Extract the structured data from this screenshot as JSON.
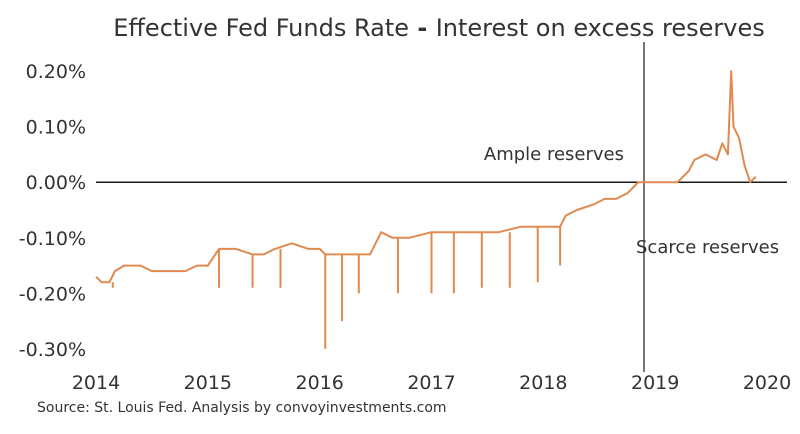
{
  "chart_data": {
    "type": "line",
    "title_part1": "Effective Fed Funds Rate",
    "title_sep": " - ",
    "title_part2": "Interest on excess reserves",
    "source": "Source: St. Louis Fed. Analysis by convoyinvestments.com",
    "xlabel": "",
    "ylabel": "",
    "x_ticks": [
      "2014",
      "2015",
      "2016",
      "2017",
      "2018",
      "2019",
      "2020"
    ],
    "y_ticks": [
      "0.20%",
      "0.10%",
      "0.00%",
      "-0.10%",
      "-0.20%",
      "-0.30%"
    ],
    "y_tick_values": [
      0.2,
      0.1,
      0.0,
      -0.1,
      -0.2,
      -0.3
    ],
    "xlim": [
      2014.0,
      2020.0
    ],
    "ylim": [
      -0.32,
      0.22
    ],
    "grid": false,
    "legend": "none",
    "line_color": "#e08a50",
    "zero_line_color": "#1a1a1a",
    "vline_x": 2018.9,
    "annotations": {
      "ample": "Ample reserves",
      "scarce": "Scarce reserves"
    },
    "series": [
      {
        "values": [
          [
            2014.0,
            -0.17
          ],
          [
            2014.05,
            -0.18
          ],
          [
            2014.12,
            -0.18
          ],
          [
            2014.17,
            -0.16
          ],
          [
            2014.25,
            -0.15
          ],
          [
            2014.4,
            -0.15
          ],
          [
            2014.5,
            -0.16
          ],
          [
            2014.55,
            -0.16
          ],
          [
            2014.7,
            -0.16
          ],
          [
            2014.8,
            -0.16
          ],
          [
            2014.9,
            -0.15
          ],
          [
            2015.0,
            -0.15
          ],
          [
            2015.1,
            -0.12
          ],
          [
            2015.25,
            -0.12
          ],
          [
            2015.4,
            -0.13
          ],
          [
            2015.5,
            -0.13
          ],
          [
            2015.6,
            -0.12
          ],
          [
            2015.75,
            -0.11
          ],
          [
            2015.9,
            -0.12
          ],
          [
            2016.0,
            -0.12
          ],
          [
            2016.05,
            -0.13
          ],
          [
            2016.2,
            -0.13
          ],
          [
            2016.35,
            -0.13
          ],
          [
            2016.45,
            -0.13
          ],
          [
            2016.55,
            -0.09
          ],
          [
            2016.65,
            -0.1
          ],
          [
            2016.8,
            -0.1
          ],
          [
            2017.0,
            -0.09
          ],
          [
            2017.2,
            -0.09
          ],
          [
            2017.4,
            -0.09
          ],
          [
            2017.6,
            -0.09
          ],
          [
            2017.8,
            -0.08
          ],
          [
            2018.0,
            -0.08
          ],
          [
            2018.15,
            -0.08
          ],
          [
            2018.2,
            -0.06
          ],
          [
            2018.3,
            -0.05
          ],
          [
            2018.45,
            -0.04
          ],
          [
            2018.55,
            -0.03
          ],
          [
            2018.65,
            -0.03
          ],
          [
            2018.75,
            -0.02
          ],
          [
            2018.85,
            0.0
          ],
          [
            2018.95,
            0.0
          ],
          [
            2019.1,
            0.0
          ],
          [
            2019.2,
            0.0
          ],
          [
            2019.3,
            0.02
          ],
          [
            2019.35,
            0.04
          ],
          [
            2019.45,
            0.05
          ],
          [
            2019.55,
            0.04
          ],
          [
            2019.6,
            0.07
          ],
          [
            2019.65,
            0.05
          ],
          [
            2019.68,
            0.2
          ],
          [
            2019.7,
            0.1
          ],
          [
            2019.75,
            0.08
          ],
          [
            2019.8,
            0.03
          ],
          [
            2019.85,
            0.0
          ],
          [
            2019.9,
            0.01
          ]
        ],
        "dips": [
          [
            2014.15,
            -0.19
          ],
          [
            2015.1,
            -0.19
          ],
          [
            2015.4,
            -0.19
          ],
          [
            2015.65,
            -0.19
          ],
          [
            2016.05,
            -0.3
          ],
          [
            2016.2,
            -0.25
          ],
          [
            2016.35,
            -0.2
          ],
          [
            2016.7,
            -0.2
          ],
          [
            2017.0,
            -0.2
          ],
          [
            2017.2,
            -0.2
          ],
          [
            2017.45,
            -0.19
          ],
          [
            2017.7,
            -0.19
          ],
          [
            2017.95,
            -0.18
          ],
          [
            2018.15,
            -0.15
          ]
        ]
      }
    ]
  }
}
